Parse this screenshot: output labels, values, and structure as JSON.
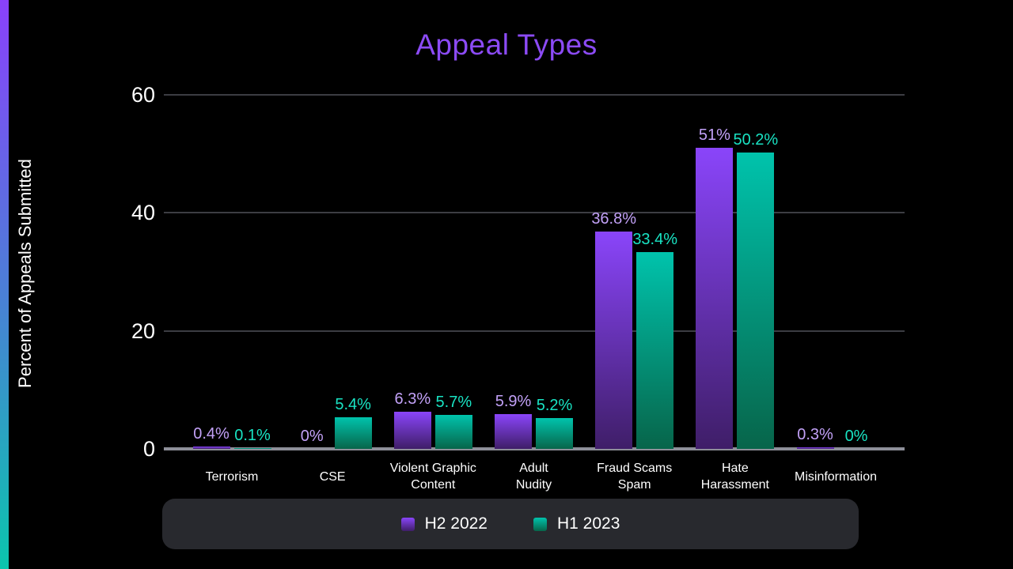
{
  "chart_data": {
    "type": "bar",
    "title": "Appeal Types",
    "ylabel": "Percent of Appeals Submitted",
    "categories": [
      "Terrorism",
      "CSE",
      "Violent Graphic\nContent",
      "Adult\nNudity",
      "Fraud Scams\nSpam",
      "Hate\nHarassment",
      "Misinformation"
    ],
    "series": [
      {
        "name": "H2 2022",
        "values": [
          0.4,
          0,
          6.3,
          5.9,
          36.8,
          51,
          0.3
        ],
        "labels": [
          "0.4%",
          "0%",
          "6.3%",
          "5.9%",
          "36.8%",
          "51%",
          "0.3%"
        ]
      },
      {
        "name": "H1 2023",
        "values": [
          0.1,
          5.4,
          5.7,
          5.2,
          33.4,
          50.2,
          0
        ],
        "labels": [
          "0.1%",
          "5.4%",
          "5.7%",
          "5.2%",
          "33.4%",
          "50.2%",
          "0%"
        ]
      }
    ],
    "y_ticks": [
      60,
      40,
      20,
      0
    ],
    "ylim": [
      0,
      60
    ],
    "grid": true,
    "legend_position": "bottom"
  },
  "colors": {
    "background": "#000000",
    "title": "#8c4bf6",
    "axis_text": "#ffffff",
    "gridline": "#3c3d43",
    "baseline": "#8e8f99",
    "accent_strip_top": "#8a41fb",
    "accent_strip_mid": "#4a80d6",
    "accent_strip_bottom": "#0bc5ad",
    "legend_background": "#28292e",
    "legend_text": "#ffffff",
    "series_styles": [
      {
        "top": "#8a45fa",
        "bottom": "#3f1e68",
        "label": "#c2a1f7"
      },
      {
        "top": "#00c3ac",
        "bottom": "#07654a",
        "label": "#19e3c3"
      }
    ]
  }
}
